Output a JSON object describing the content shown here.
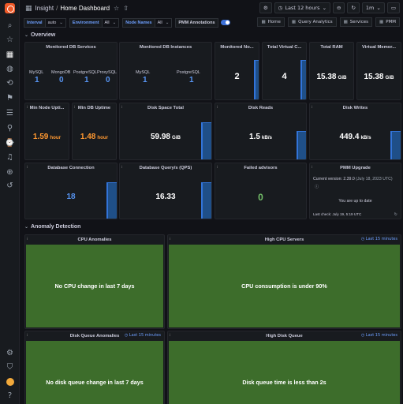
{
  "breadcrumb": {
    "folder": "Insight",
    "separator": "/",
    "dashboard": "Home Dashboard"
  },
  "time": {
    "range": "Last 12 hours",
    "refresh": "1m"
  },
  "variables": [
    {
      "label": "Interval",
      "value": "auto"
    },
    {
      "label": "Environment",
      "value": "All"
    },
    {
      "label": "Node Names",
      "value": "All"
    },
    {
      "label": "PMM Annotations",
      "value": ""
    }
  ],
  "links": [
    {
      "icon": "▦",
      "label": "Home"
    },
    {
      "icon": "▦",
      "label": "Query Analytics"
    },
    {
      "icon": "▦",
      "label": "Services"
    },
    {
      "icon": "▦",
      "label": "PMM"
    }
  ],
  "rows": {
    "overview": "Overview",
    "anomaly": "Anomaly Detection"
  },
  "panels": {
    "monitored_db_services": {
      "title": "Monitored DB Services",
      "items": [
        {
          "label": "MySQL",
          "value": "1"
        },
        {
          "label": "MongoDB",
          "value": "0"
        },
        {
          "label": "PostgreSQL",
          "value": "1"
        },
        {
          "label": "ProxySQL",
          "value": "0"
        }
      ]
    },
    "monitored_db_instances": {
      "title": "Monitored DB Instances",
      "items": [
        {
          "label": "MySQL",
          "value": "1"
        },
        {
          "label": "PostgreSQL",
          "value": "1"
        }
      ]
    },
    "monitored_nodes": {
      "title": "Monitored No...",
      "value": "2"
    },
    "total_virtual_cpus": {
      "title": "Total Virtual C...",
      "value": "4"
    },
    "total_ram": {
      "title": "Total RAM",
      "value": "15.38",
      "unit": "GiB"
    },
    "virtual_memory": {
      "title": "Virtual Memor...",
      "value": "15.38",
      "unit": "GiB"
    },
    "min_node_uptime": {
      "title": "Min Node Upti...",
      "value": "1.59",
      "unit": "hour"
    },
    "min_db_uptime": {
      "title": "Min DB Uptime",
      "value": "1.48",
      "unit": "hour"
    },
    "disk_space_total": {
      "title": "Disk Space Total",
      "value": "59.98",
      "unit": "GiB"
    },
    "disk_reads": {
      "title": "Disk Reads",
      "value": "1.5",
      "unit": "kB/s"
    },
    "disk_writes": {
      "title": "Disk Writes",
      "value": "449.4",
      "unit": "kB/s"
    },
    "database_connection": {
      "title": "Database Connection",
      "value": "18"
    },
    "database_queries": {
      "title": "Database Query/s (QPS)",
      "value": "16.33"
    },
    "failed_advisors": {
      "title": "Failed advisors",
      "value": "0"
    },
    "pmm_upgrade": {
      "title": "PMM Upgrade",
      "current_version": "Current version: 2.39.0",
      "version_date": "(July 18, 2023 UTC)",
      "status": "You are up to date",
      "last_check": "Last check: July 19, 5:19 UTC"
    },
    "cpu_anomalies": {
      "title": "CPU Anomalies",
      "message": "No CPU change in last 7 days"
    },
    "high_cpu_servers": {
      "title": "High CPU Servers",
      "range_link": "Last 15 minutes",
      "message": "CPU consumption is under 90%"
    },
    "disk_queue_anomalies": {
      "title": "Disk Queue Anomalies",
      "range_link": "Last 15 minutes",
      "message": "No disk queue change in last 7 days"
    },
    "high_disk_queue": {
      "title": "High Disk Queue",
      "range_link": "Last 15 minutes",
      "message": "Disk queue time is less than 2s"
    }
  },
  "colors": {
    "accent_blue": "#5794f2",
    "value_orange": "#ff9830",
    "value_white": "#ffffff",
    "value_green": "#73bf69",
    "anomaly_green": "#3d6d2b"
  }
}
